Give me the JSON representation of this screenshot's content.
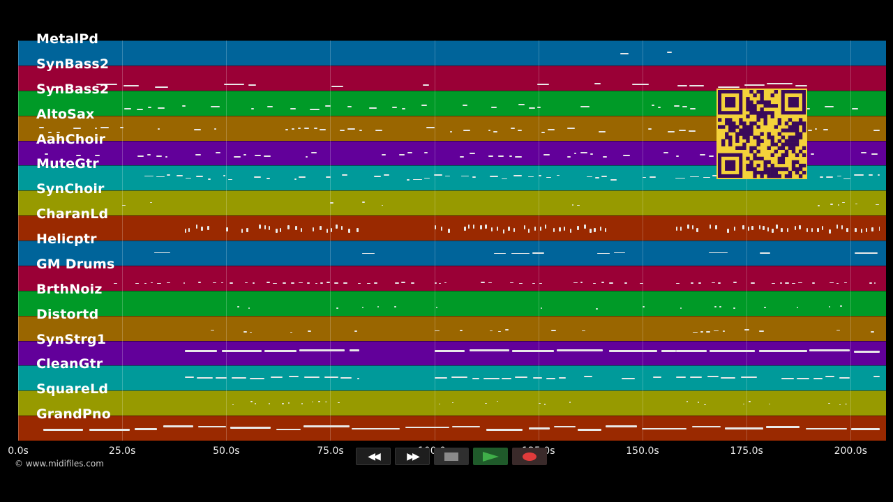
{
  "tracks": [
    {
      "name": "MetalPd",
      "color": "#00649a"
    },
    {
      "name": "SynBass2",
      "color": "#9a0036"
    },
    {
      "name": "SynBass2",
      "color": "#009a27"
    },
    {
      "name": "AltoSax",
      "color": "#9a6600"
    },
    {
      "name": "AahChoir",
      "color": "#62009a"
    },
    {
      "name": "MuteGtr",
      "color": "#009a9a"
    },
    {
      "name": "SynChoir",
      "color": "#979a00"
    },
    {
      "name": "CharanLd",
      "color": "#9a2900"
    },
    {
      "name": "Helicptr",
      "color": "#00649a"
    },
    {
      "name": "GM Drums",
      "color": "#9a0036"
    },
    {
      "name": "BrthNoiz",
      "color": "#009a27"
    },
    {
      "name": "Distortd",
      "color": "#9a6600"
    },
    {
      "name": "SynStrg1",
      "color": "#62009a"
    },
    {
      "name": "CleanGtr",
      "color": "#009a9a"
    },
    {
      "name": "SquareLd",
      "color": "#979a00"
    },
    {
      "name": "GrandPno",
      "color": "#9a2900"
    }
  ],
  "timeline": {
    "ticks": [
      "0.0s",
      "25.0s",
      "50.0s",
      "75.0s",
      "100.0s",
      "125.0s",
      "150.0s",
      "175.0s",
      "200.0s"
    ],
    "tick_values": [
      0,
      25,
      50,
      75,
      100,
      125,
      150,
      175,
      200
    ],
    "max_seconds": 208.5
  },
  "copyright": "© www.midifiles.com",
  "transport": {
    "rewind_icon": "rewind-icon",
    "fast_forward_icon": "fast-forward-icon",
    "stop_icon": "stop-icon",
    "play_icon": "play-icon",
    "record_icon": "record-icon",
    "play_color": "#3fae49",
    "record_color": "#e03b3b"
  }
}
